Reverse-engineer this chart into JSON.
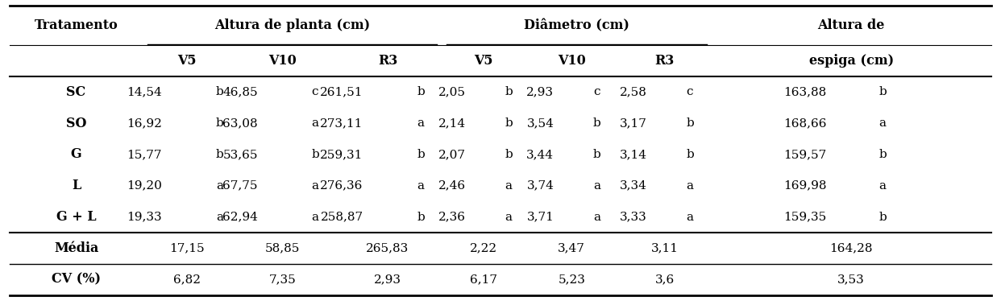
{
  "col_headers_row1_left": "Tratamento",
  "col_headers_row1_mid1": "Altura de planta (cm)",
  "col_headers_row1_mid2": "Diâmetro (cm)",
  "col_headers_row1_right1": "Altura de",
  "col_headers_row2": [
    "V5",
    "V10",
    "R3",
    "V5",
    "V10",
    "R3",
    "espiga (cm)"
  ],
  "rows": [
    [
      "SC",
      "14,54",
      "b",
      "46,85",
      "c",
      "261,51",
      "b",
      "2,05",
      "b",
      "2,93",
      "c",
      "2,58",
      "c",
      "163,88",
      "b"
    ],
    [
      "SO",
      "16,92",
      "b",
      "63,08",
      "a",
      "273,11",
      "a",
      "2,14",
      "b",
      "3,54",
      "b",
      "3,17",
      "b",
      "168,66",
      "a"
    ],
    [
      "G",
      "15,77",
      "b",
      "53,65",
      "b",
      "259,31",
      "b",
      "2,07",
      "b",
      "3,44",
      "b",
      "3,14",
      "b",
      "159,57",
      "b"
    ],
    [
      "L",
      "19,20",
      "a",
      "67,75",
      "a",
      "276,36",
      "a",
      "2,46",
      "a",
      "3,74",
      "a",
      "3,34",
      "a",
      "169,98",
      "a"
    ],
    [
      "G + L",
      "19,33",
      "a",
      "62,94",
      "a",
      "258,87",
      "b",
      "2,36",
      "a",
      "3,71",
      "a",
      "3,33",
      "a",
      "159,35",
      "b"
    ]
  ],
  "media_row": [
    "Média",
    "17,15",
    "58,85",
    "265,83",
    "2,22",
    "3,47",
    "3,11",
    "164,28"
  ],
  "cv_row": [
    "CV (%)",
    "6,82",
    "7,35",
    "2,93",
    "6,17",
    "5,23",
    "3,6",
    "3,53"
  ],
  "bg_color": "#ffffff",
  "text_color": "#000000",
  "font_size": 11.5
}
